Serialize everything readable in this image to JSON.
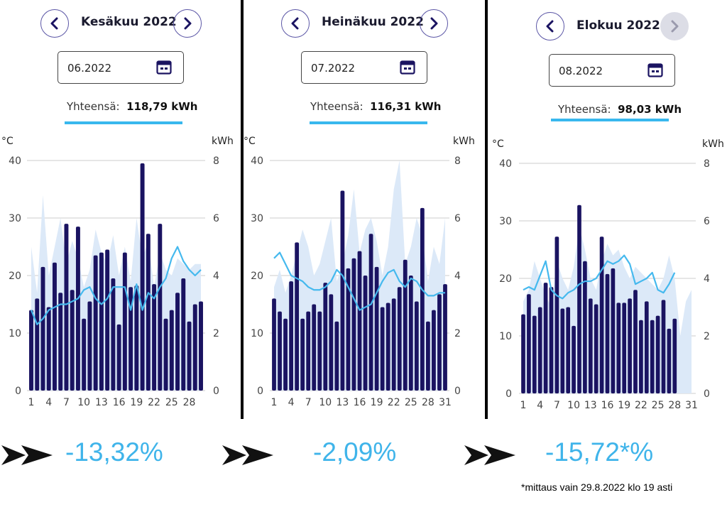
{
  "colors": {
    "bar": "#1a1361",
    "line": "#45b9ee",
    "temp_area": "#dce9f8",
    "grid": "#cccccc",
    "accent": "#38b8ee"
  },
  "panels": [
    {
      "month": "Kesäkuu 2022",
      "date_value": "06.2022",
      "total_label": "Yhteensä:",
      "total_value": "118,79 kWh",
      "change": "-13,32%"
    },
    {
      "month": "Heinäkuu 2022",
      "date_value": "07.2022",
      "total_label": "Yhteensä:",
      "total_value": "116,31 kWh",
      "change": "-2,09%"
    },
    {
      "month": "Elokuu 2022",
      "date_value": "08.2022",
      "total_label": "Yhteensä:",
      "total_value": "98,03 kWh",
      "change": "-15,72*%"
    }
  ],
  "footnote": "*mittaus vain 29.8.2022 klo 19 asti",
  "icons": {
    "prev": "chevron-left-icon",
    "next": "chevron-right-icon",
    "calendar": "calendar-icon",
    "arrow": "double-arrow-icon"
  },
  "chart_data": [
    {
      "type": "bar",
      "title": "Kesäkuu 2022",
      "y_left_label": "°C",
      "y_right_label": "kWh",
      "y_left_ticks": [
        "0",
        "10",
        "20",
        "30",
        "40"
      ],
      "y_right_ticks": [
        "0",
        "2",
        "4",
        "6",
        "8"
      ],
      "ylim_temp": [
        0,
        40
      ],
      "ylim_kwh": [
        0,
        8
      ],
      "x_ticks": [
        "1",
        "4",
        "7",
        "10",
        "13",
        "16",
        "19",
        "22",
        "25",
        "28"
      ],
      "days": [
        1,
        2,
        3,
        4,
        5,
        6,
        7,
        8,
        9,
        10,
        11,
        12,
        13,
        14,
        15,
        16,
        17,
        18,
        19,
        20,
        21,
        22,
        23,
        24,
        25,
        26,
        27,
        28,
        29,
        30
      ],
      "kwh": [
        2.8,
        3.2,
        4.3,
        2.9,
        4.45,
        3.4,
        5.8,
        3.5,
        5.7,
        2.5,
        3.1,
        4.7,
        4.8,
        4.9,
        3.9,
        2.3,
        4.8,
        3.6,
        3.65,
        7.9,
        5.45,
        3.7,
        5.8,
        2.5,
        2.8,
        3.4,
        3.9,
        2.4,
        3.0,
        3.1
      ],
      "temp_c": [
        14,
        11.5,
        12.5,
        14,
        14.5,
        15,
        15,
        15.5,
        16,
        17.5,
        18,
        16,
        15,
        16,
        18,
        18,
        18,
        14,
        18.5,
        14,
        17,
        16,
        18,
        19.5,
        23,
        25,
        22.5,
        21,
        20,
        21
      ],
      "temp_area": [
        25,
        17,
        34,
        20,
        25,
        30,
        22,
        26,
        23,
        18,
        21,
        28,
        24,
        22,
        27,
        20,
        25,
        19,
        30,
        23,
        26,
        18,
        24,
        21,
        20,
        23,
        22,
        21,
        22,
        22
      ]
    },
    {
      "type": "bar",
      "title": "Heinäkuu 2022",
      "y_left_label": "°C",
      "y_right_label": "kWh",
      "y_left_ticks": [
        "0",
        "10",
        "20",
        "30",
        "40"
      ],
      "y_right_ticks": [
        "0",
        "2",
        "4",
        "6",
        "8"
      ],
      "ylim_temp": [
        0,
        40
      ],
      "ylim_kwh": [
        0,
        8
      ],
      "x_ticks": [
        "1",
        "4",
        "7",
        "10",
        "13",
        "16",
        "19",
        "22",
        "25",
        "28",
        "31"
      ],
      "days": [
        1,
        2,
        3,
        4,
        5,
        6,
        7,
        8,
        9,
        10,
        11,
        12,
        13,
        14,
        15,
        16,
        17,
        18,
        19,
        20,
        21,
        22,
        23,
        24,
        25,
        26,
        27,
        28,
        29,
        30,
        31
      ],
      "kwh": [
        3.2,
        2.75,
        2.5,
        3.8,
        5.15,
        2.5,
        2.75,
        3.0,
        2.75,
        3.75,
        3.35,
        2.4,
        6.95,
        4.25,
        4.6,
        4.85,
        4.0,
        5.45,
        4.3,
        2.9,
        3.05,
        3.2,
        3.6,
        4.55,
        4.0,
        3.1,
        6.35,
        2.4,
        2.8,
        3.35,
        3.7
      ],
      "temp_c": [
        23,
        24,
        22,
        20,
        19.5,
        19,
        18,
        17.5,
        17.5,
        18,
        19,
        21,
        20,
        18,
        16,
        14,
        14.5,
        15,
        17,
        19,
        20.5,
        21,
        19,
        18,
        19.5,
        19,
        17.5,
        16.5,
        16.5,
        17,
        17
      ],
      "temp_area": [
        18,
        21,
        17,
        20,
        24,
        28,
        25,
        20,
        22,
        26,
        30,
        19,
        22,
        27,
        35,
        24,
        28,
        30,
        26,
        20,
        25,
        35,
        40,
        22,
        25,
        30,
        27,
        19,
        25,
        22,
        30
      ]
    },
    {
      "type": "bar",
      "title": "Elokuu 2022",
      "y_left_label": "°C",
      "y_right_label": "kWh",
      "y_left_ticks": [
        "0",
        "10",
        "20",
        "30",
        "40"
      ],
      "y_right_ticks": [
        "0",
        "2",
        "4",
        "6",
        "8"
      ],
      "ylim_temp": [
        0,
        40
      ],
      "ylim_kwh": [
        0,
        8
      ],
      "x_ticks": [
        "1",
        "4",
        "7",
        "10",
        "13",
        "16",
        "19",
        "22",
        "25",
        "28",
        "31"
      ],
      "days": [
        1,
        2,
        3,
        4,
        5,
        6,
        7,
        8,
        9,
        10,
        11,
        12,
        13,
        14,
        15,
        16,
        17,
        18,
        19,
        20,
        21,
        22,
        23,
        24,
        25,
        26,
        27,
        28,
        29,
        30,
        31
      ],
      "kwh": [
        2.75,
        3.45,
        2.7,
        3.0,
        3.85,
        3.7,
        5.45,
        2.95,
        3.0,
        2.35,
        6.55,
        4.6,
        3.3,
        3.1,
        5.45,
        4.15,
        4.35,
        3.15,
        3.15,
        3.3,
        3.6,
        2.55,
        3.2,
        2.55,
        2.7,
        3.25,
        2.25,
        2.6
      ],
      "temp_c": [
        18,
        18.5,
        18,
        20.5,
        23,
        18,
        17,
        16.5,
        17.5,
        18,
        19,
        19.5,
        19.5,
        20,
        21.5,
        23,
        22.5,
        23,
        24,
        22.5,
        19,
        19.5,
        20,
        21,
        18,
        17.5,
        19,
        21
      ],
      "temp_area": [
        16,
        18,
        23,
        20,
        17,
        15,
        23,
        20,
        18,
        22,
        29,
        25,
        20,
        18,
        23,
        26,
        24,
        25,
        22,
        20,
        22,
        21,
        20,
        19,
        18,
        20,
        24,
        20,
        10,
        16,
        18
      ]
    }
  ]
}
